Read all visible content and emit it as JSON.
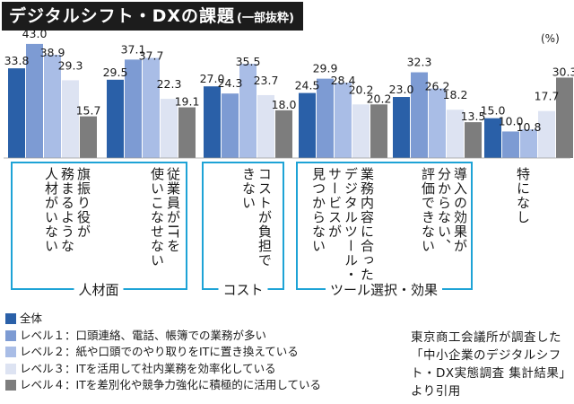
{
  "title": "デジタルシフト・DXの課題",
  "subtitle": "(一部抜粋)",
  "unit": "(%)",
  "colors": [
    "#2a60a8",
    "#7d9bd3",
    "#a9bde6",
    "#dde3f2",
    "#7d7d7d"
  ],
  "accent_color": "#1ea3d6",
  "chart_data": {
    "type": "bar",
    "title": "デジタルシフト・DXの課題",
    "ylabel": "(%)",
    "ylim": [
      0,
      45
    ],
    "grid": false,
    "legend": "bottom-left",
    "categories": [
      "旗振り役が務まるような人材がいない",
      "従業員がITを使いこなせない",
      "コストが負担できない",
      "業務内容に合ったデジタルツール・サービスが見つからない",
      "導入の効果が分からない、評価できない",
      "特になし"
    ],
    "series": [
      {
        "name": "全体",
        "values": [
          33.8,
          29.5,
          27.0,
          24.5,
          23.0,
          15.0
        ]
      },
      {
        "name": "レベル1：口頭連絡、電話、帳簿での業務が多い",
        "values": [
          43.0,
          37.1,
          24.3,
          29.9,
          32.3,
          10.0
        ]
      },
      {
        "name": "レベル2：紙や口頭でのやり取りをITに置き換えている",
        "values": [
          38.9,
          37.7,
          35.5,
          28.4,
          26.2,
          10.8
        ]
      },
      {
        "name": "レベル3：ITを活用して社内業務を効率化している",
        "values": [
          29.3,
          22.3,
          23.7,
          20.2,
          18.2,
          17.7
        ]
      },
      {
        "name": "レベル4：ITを差別化や競争力強化に積極的に活用している",
        "values": [
          15.7,
          19.1,
          18.0,
          20.2,
          13.5,
          30.3
        ]
      }
    ],
    "groups": [
      {
        "label": "人材面",
        "categories": [
          0,
          1
        ]
      },
      {
        "label": "コスト",
        "categories": [
          2
        ]
      },
      {
        "label": "ツール選択・効果",
        "categories": [
          3,
          4
        ]
      }
    ],
    "category_labels_display": [
      [
        "旗振り役が",
        "務まるような",
        "人材がいない"
      ],
      [
        "従業員がITを",
        "使いこなせない"
      ],
      [
        "コストが負担で",
        "きない"
      ],
      [
        "業務内容に合った",
        "デジタルツール・",
        "サービスが",
        "見つからない"
      ],
      [
        "導入の効果が",
        "分からない、",
        "評価できない"
      ],
      [
        "特になし"
      ]
    ]
  },
  "legend": [
    "全体",
    "レベル１：口頭連絡、電話、帳簿での業務が多い",
    "レベル２：紙や口頭でのやり取りをITに置き換えている",
    "レベル３：ITを活用して社内業務を効率化している",
    "レベル４：ITを差別化や競争力強化に積極的に活用している"
  ],
  "source_note": "東京商工会議所が調査した「中小企業のデジタルシフト・DX実態調査 集計結果」より引用"
}
